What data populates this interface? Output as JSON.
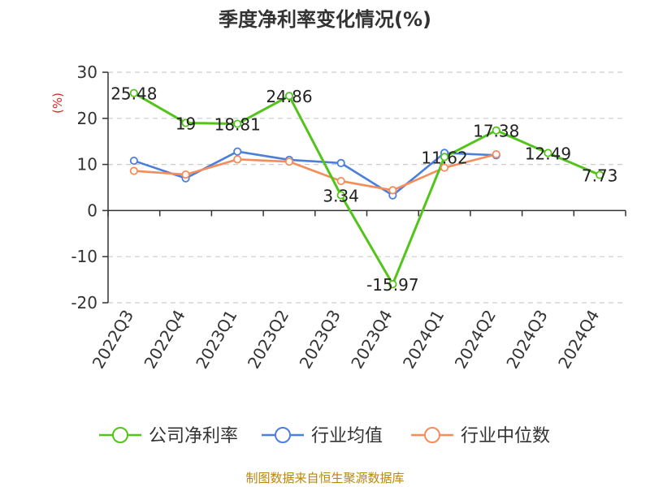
{
  "chart_data": {
    "type": "line",
    "title": "季度净利率变化情况(%)",
    "ylabel": "(%)",
    "xlabel": "",
    "categories": [
      "2022Q3",
      "2022Q4",
      "2023Q1",
      "2023Q2",
      "2023Q3",
      "2023Q4",
      "2024Q1",
      "2024Q2",
      "2024Q3",
      "2024Q4"
    ],
    "ylim": [
      -20,
      30
    ],
    "yticks": [
      -20,
      -10,
      0,
      10,
      20,
      30
    ],
    "grid": true,
    "legend_position": "bottom",
    "series": [
      {
        "name": "公司净利率",
        "color": "#52c41a",
        "values": [
          25.48,
          19,
          18.81,
          24.86,
          3.34,
          -15.97,
          11.62,
          17.38,
          12.49,
          7.73
        ],
        "labels": [
          "25.48",
          "19",
          "18.81",
          "24.86",
          "3.34",
          "-15.97",
          "11.62",
          "17.38",
          "12.49",
          "7.73"
        ]
      },
      {
        "name": "行业均值",
        "color": "#4a7fdc",
        "values": [
          10.8,
          7.0,
          12.8,
          11.0,
          10.3,
          3.3,
          12.5,
          12.0,
          null,
          null
        ]
      },
      {
        "name": "行业中位数",
        "color": "#f58c5a",
        "values": [
          8.6,
          7.8,
          11.1,
          10.6,
          6.4,
          4.4,
          9.3,
          12.2,
          null,
          null
        ]
      }
    ]
  },
  "source": "制图数据来自恒生聚源数据库"
}
